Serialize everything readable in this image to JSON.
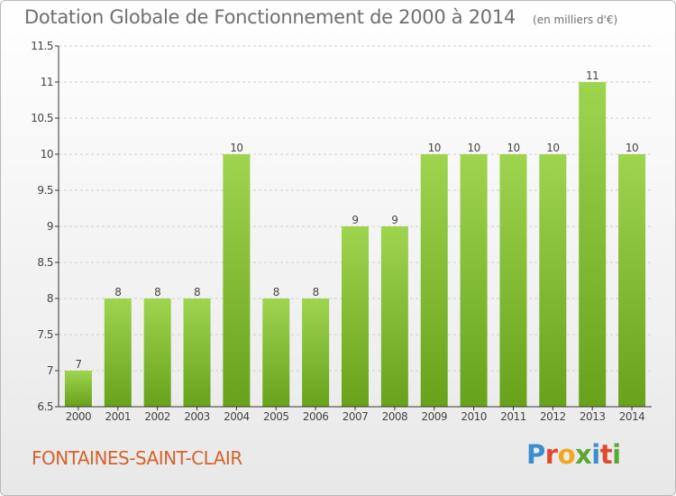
{
  "title": "Dotation Globale de Fonctionnement de 2000 à 2014",
  "unit_label": "(en milliers d'€)",
  "commune": "FONTAINES-SAINT-CLAIR",
  "logo": {
    "text": "Proxiti",
    "letter_colors": [
      "#3a8fd0",
      "#e04a2d",
      "#f2a81e",
      "#58a832",
      "#3a8fd0",
      "#e04a2d",
      "#58a832"
    ]
  },
  "colors": {
    "bar_top": "#9fd44f",
    "bar_bottom": "#67a21a",
    "axis": "#333333",
    "grid": "#d0d0d0",
    "text": "#444444"
  },
  "chart_data": {
    "type": "bar",
    "categories": [
      "2000",
      "2001",
      "2002",
      "2003",
      "2004",
      "2005",
      "2006",
      "2007",
      "2008",
      "2009",
      "2010",
      "2011",
      "2012",
      "2013",
      "2014"
    ],
    "values": [
      7,
      8,
      8,
      8,
      10,
      8,
      8,
      9,
      9,
      10,
      10,
      10,
      10,
      11,
      10
    ],
    "data_labels": [
      "7",
      "8",
      "8",
      "8",
      "10",
      "8",
      "8",
      "9",
      "9",
      "10",
      "10",
      "10",
      "10",
      "11",
      "10"
    ],
    "ylim": [
      6.5,
      11.5
    ],
    "yticks": [
      "6.5",
      "7",
      "7.5",
      "8",
      "8.5",
      "9",
      "9.5",
      "10",
      "10.5",
      "11",
      "11.5"
    ],
    "xlabel": "",
    "ylabel": "",
    "grid": true
  }
}
